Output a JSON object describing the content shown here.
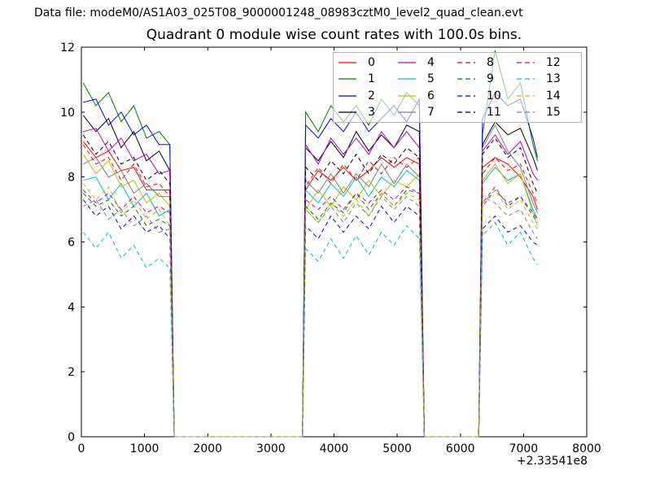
{
  "header": {
    "datafile": "Data file: modeM0/AS1A03_025T08_9000001248_08983cztM0_level2_quad_clean.evt"
  },
  "chart_data": {
    "type": "line",
    "title": "Quadrant 0 module wise count rates with 100.0s bins.",
    "xlabel": "",
    "ylabel": "",
    "x_offset_label": "+2.33541e8",
    "xlim": [
      0,
      8000
    ],
    "ylim": [
      0,
      12
    ],
    "x_ticks": [
      0,
      1000,
      2000,
      3000,
      4000,
      5000,
      6000,
      7000,
      8000
    ],
    "y_ticks": [
      0,
      2,
      4,
      6,
      8,
      10,
      12
    ],
    "grid": false,
    "legend_position": "upper right",
    "legend_columns": 4,
    "frame_color": "#000000",
    "x": [
      30,
      230,
      430,
      630,
      830,
      1030,
      1230,
      1400,
      1470,
      3500,
      3550,
      3750,
      3950,
      4150,
      4350,
      4550,
      4750,
      4950,
      5150,
      5350,
      5430,
      6290,
      6350,
      6550,
      6750,
      6950,
      7150,
      7220
    ],
    "series": [
      {
        "name": "0",
        "color": "#ff0000",
        "dash": "solid",
        "values": [
          9.1,
          8.6,
          8.8,
          8.2,
          8.3,
          7.6,
          7.6,
          7.6,
          0,
          0,
          7.6,
          8.2,
          7.9,
          8.3,
          7.9,
          8.2,
          8.6,
          8.3,
          8.6,
          8.4,
          0,
          0,
          8.3,
          8.6,
          8.4,
          8.0,
          7.4,
          7.0
        ]
      },
      {
        "name": "1",
        "color": "#007f00",
        "dash": "solid",
        "values": [
          10.9,
          10.2,
          10.6,
          9.7,
          10.2,
          9.2,
          9.4,
          9.0,
          0,
          0,
          10.0,
          9.4,
          10.2,
          9.7,
          10.2,
          9.6,
          10.4,
          9.9,
          10.6,
          10.2,
          0,
          0,
          9.3,
          11.9,
          10.4,
          10.9,
          9.0,
          8.5
        ]
      },
      {
        "name": "2",
        "color": "#0000ff",
        "dash": "solid",
        "values": [
          10.3,
          10.4,
          9.6,
          10.0,
          9.3,
          9.6,
          9.0,
          9.0,
          0,
          0,
          9.6,
          9.2,
          9.8,
          9.4,
          10.0,
          9.4,
          9.8,
          10.2,
          9.7,
          10.4,
          0,
          0,
          9.8,
          10.6,
          10.2,
          10.4,
          9.2,
          8.6
        ]
      },
      {
        "name": "3",
        "color": "#000000",
        "dash": "solid",
        "values": [
          9.9,
          9.4,
          9.8,
          8.9,
          9.4,
          8.5,
          8.8,
          8.2,
          0,
          0,
          8.9,
          8.5,
          9.1,
          8.6,
          9.4,
          8.8,
          9.3,
          8.9,
          9.6,
          9.4,
          0,
          0,
          9.0,
          9.7,
          9.3,
          9.5,
          8.6,
          8.2
        ]
      },
      {
        "name": "4",
        "color": "#bf00bf",
        "dash": "solid",
        "values": [
          9.4,
          9.5,
          8.8,
          9.2,
          8.5,
          8.7,
          8.1,
          8.2,
          0,
          0,
          9.0,
          8.4,
          9.2,
          8.7,
          9.2,
          8.7,
          9.4,
          8.9,
          9.4,
          8.9,
          0,
          0,
          8.8,
          9.3,
          8.7,
          9.1,
          8.1,
          7.9
        ]
      },
      {
        "name": "5",
        "color": "#00bfbf",
        "dash": "solid",
        "values": [
          7.9,
          8.0,
          7.3,
          7.8,
          7.1,
          7.5,
          6.8,
          7.0,
          0,
          0,
          7.6,
          7.2,
          7.8,
          7.4,
          8.0,
          7.4,
          8.0,
          7.7,
          8.2,
          7.9,
          0,
          0,
          7.8,
          8.3,
          7.9,
          8.1,
          7.0,
          6.7
        ]
      },
      {
        "name": "6",
        "color": "#bfbf00",
        "dash": "solid",
        "values": [
          8.7,
          8.1,
          8.5,
          7.7,
          7.9,
          7.2,
          7.5,
          7.1,
          0,
          0,
          7.0,
          7.6,
          7.1,
          7.7,
          7.3,
          7.9,
          7.4,
          7.9,
          7.7,
          8.1,
          0,
          0,
          7.9,
          8.4,
          7.8,
          8.1,
          6.9,
          6.5
        ]
      },
      {
        "name": "7",
        "color": "#7f7f7f",
        "dash": "solid",
        "values": [
          8.4,
          8.6,
          8.0,
          8.2,
          7.5,
          7.8,
          7.4,
          7.4,
          0,
          0,
          7.9,
          7.5,
          8.1,
          7.5,
          8.1,
          7.7,
          8.4,
          7.8,
          8.4,
          8.0,
          0,
          0,
          8.9,
          9.6,
          8.8,
          8.3,
          7.2,
          6.9
        ]
      },
      {
        "name": "8",
        "color": "#ff0000",
        "dash": "dashed",
        "values": [
          9.0,
          8.4,
          8.6,
          7.9,
          8.4,
          7.7,
          7.8,
          7.4,
          0,
          0,
          7.7,
          8.3,
          7.8,
          8.4,
          7.9,
          8.5,
          8.1,
          8.6,
          8.3,
          8.6,
          0,
          0,
          8.1,
          8.6,
          8.2,
          8.4,
          7.5,
          7.2
        ]
      },
      {
        "name": "9",
        "color": "#007f00",
        "dash": "dashed",
        "values": [
          7.5,
          7.1,
          7.3,
          6.8,
          7.1,
          6.5,
          6.7,
          6.5,
          0,
          0,
          7.1,
          6.7,
          7.2,
          6.9,
          7.5,
          7.0,
          7.5,
          7.1,
          7.6,
          7.5,
          0,
          0,
          7.1,
          7.6,
          7.2,
          7.4,
          6.8,
          6.6
        ]
      },
      {
        "name": "10",
        "color": "#0000ff",
        "dash": "dashed",
        "values": [
          7.3,
          6.8,
          7.1,
          6.4,
          6.8,
          6.3,
          6.5,
          6.1,
          0,
          0,
          6.5,
          6.1,
          6.8,
          6.3,
          6.8,
          6.4,
          7.1,
          6.6,
          7.1,
          6.8,
          0,
          0,
          6.4,
          6.8,
          6.3,
          6.5,
          6.0,
          5.9
        ]
      },
      {
        "name": "11",
        "color": "#000000",
        "dash": "dashed",
        "values": [
          9.3,
          8.7,
          9.1,
          8.4,
          8.6,
          7.9,
          8.2,
          7.8,
          0,
          0,
          8.3,
          7.9,
          8.5,
          8.1,
          8.7,
          8.1,
          8.7,
          8.4,
          8.9,
          8.6,
          0,
          0,
          8.7,
          9.2,
          8.6,
          8.9,
          7.8,
          7.5
        ]
      },
      {
        "name": "12",
        "color": "#bf00bf",
        "dash": "dashed",
        "values": [
          7.6,
          7.2,
          7.5,
          7.0,
          7.4,
          6.9,
          7.1,
          6.9,
          0,
          0,
          7.3,
          7.0,
          7.4,
          7.0,
          7.5,
          7.2,
          7.6,
          7.3,
          7.7,
          7.5,
          0,
          0,
          7.2,
          7.7,
          7.1,
          7.4,
          6.9,
          6.7
        ]
      },
      {
        "name": "13",
        "color": "#00bfbf",
        "dash": "dashed",
        "values": [
          6.3,
          5.8,
          6.3,
          5.5,
          5.9,
          5.2,
          5.5,
          5.2,
          0,
          0,
          5.8,
          5.4,
          6.1,
          5.5,
          6.2,
          5.6,
          6.3,
          5.9,
          6.5,
          6.1,
          0,
          0,
          6.2,
          6.6,
          5.9,
          6.3,
          5.5,
          5.3
        ]
      },
      {
        "name": "14",
        "color": "#bfbf00",
        "dash": "dashed",
        "values": [
          7.8,
          7.3,
          7.7,
          6.9,
          7.3,
          6.7,
          7.0,
          6.5,
          0,
          0,
          7.0,
          6.6,
          7.2,
          6.8,
          7.3,
          6.8,
          7.5,
          7.1,
          7.5,
          7.3,
          0,
          0,
          7.2,
          7.6,
          7.0,
          7.3,
          6.6,
          6.4
        ]
      },
      {
        "name": "15",
        "color": "#7f7f7f",
        "dash": "dashed",
        "values": [
          7.1,
          7.3,
          6.7,
          7.0,
          6.5,
          6.8,
          6.3,
          6.4,
          0,
          0,
          7.0,
          6.6,
          7.1,
          6.6,
          7.2,
          6.8,
          7.4,
          7.0,
          7.4,
          7.1,
          0,
          0,
          7.4,
          7.2,
          6.8,
          7.0,
          6.3,
          6.1
        ]
      }
    ]
  }
}
